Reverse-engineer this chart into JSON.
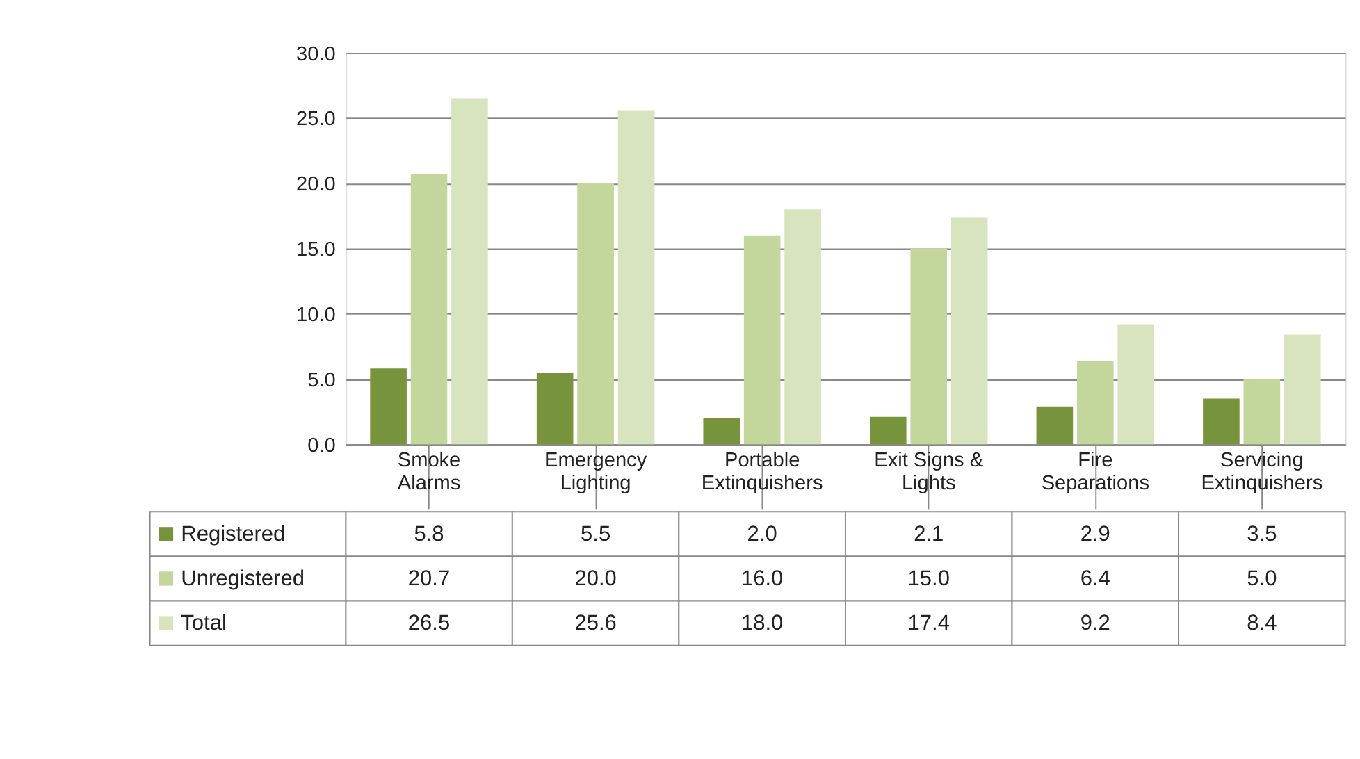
{
  "chart_data": {
    "type": "bar",
    "categories": [
      "Smoke Alarms",
      "Emergency Lighting",
      "Portable Extinquishers",
      "Exit Signs & Lights",
      "Fire Separations",
      "Servicing Extinquishers"
    ],
    "series": [
      {
        "name": "Registered",
        "color": "#77933c",
        "values": [
          5.8,
          5.5,
          2.0,
          2.1,
          2.9,
          3.5
        ],
        "value_labels": [
          "5.8",
          "5.5",
          "2.0",
          "2.1",
          "2.9",
          "3.5"
        ]
      },
      {
        "name": "Unregistered",
        "color": "#c3d69b",
        "values": [
          20.7,
          20.0,
          16.0,
          15.0,
          6.4,
          5.0
        ],
        "value_labels": [
          "20.7",
          "20.0",
          "16.0",
          "15.0",
          "6.4",
          "5.0"
        ]
      },
      {
        "name": "Total",
        "color": "#d7e4bd",
        "values": [
          26.5,
          25.6,
          18.0,
          17.4,
          9.2,
          8.4
        ],
        "value_labels": [
          "26.5",
          "25.6",
          "18.0",
          "17.4",
          "9.2",
          "8.4"
        ]
      }
    ],
    "ylim": [
      0,
      30
    ],
    "yticks": [
      {
        "value": 0,
        "label": "0.0"
      },
      {
        "value": 5,
        "label": "5.0"
      },
      {
        "value": 10,
        "label": "10.0"
      },
      {
        "value": 15,
        "label": "15.0"
      },
      {
        "value": 20,
        "label": "20.0"
      },
      {
        "value": 25,
        "label": "25.0"
      },
      {
        "value": 30,
        "label": "30.0"
      }
    ],
    "grid": "y",
    "legend": "bottom"
  }
}
